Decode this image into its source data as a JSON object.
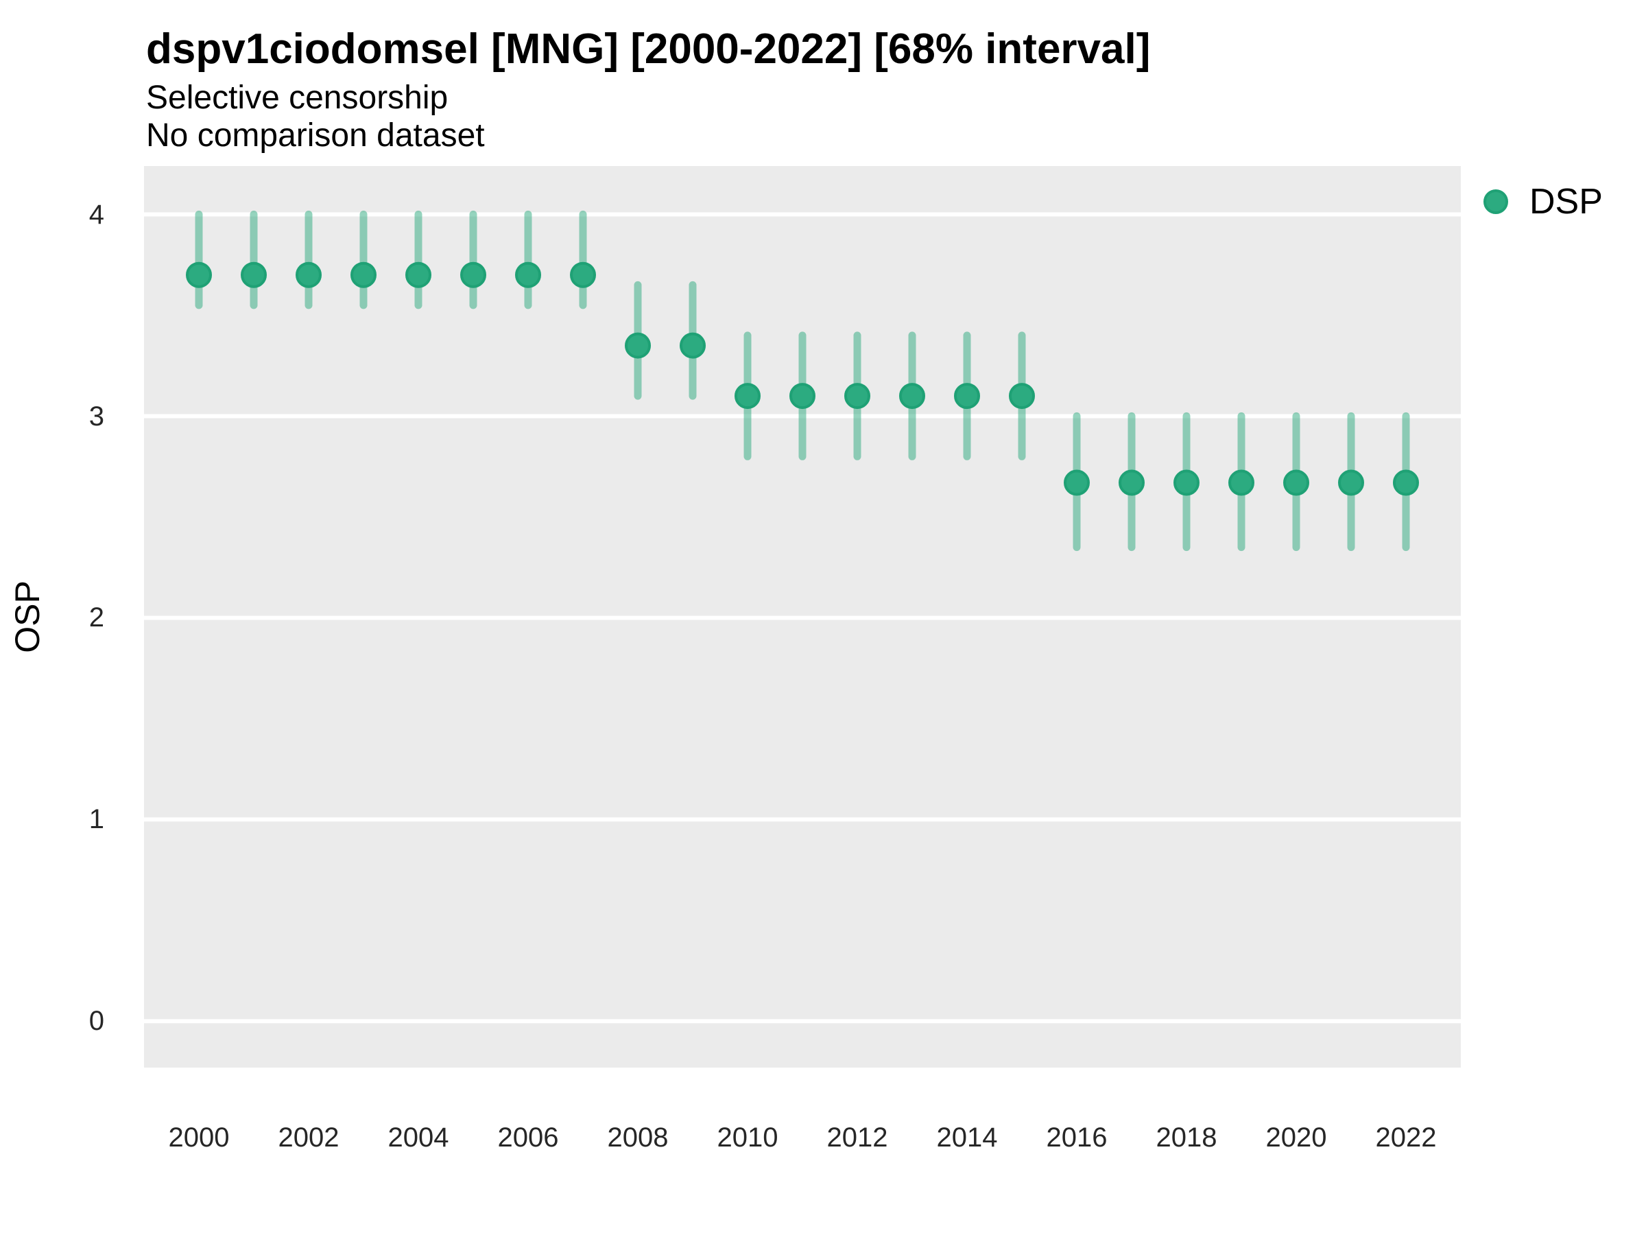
{
  "chart_data": {
    "type": "scatter",
    "subtype": "pointrange",
    "title": "dspv1ciodomsel [MNG] [2000-2022] [68% interval]",
    "subtitle_lines": [
      "Selective censorship",
      "No comparison dataset"
    ],
    "xlabel": "",
    "ylabel": "OSP",
    "legend": {
      "position": "right",
      "entries": [
        {
          "label": "DSP",
          "marker": "circle"
        }
      ]
    },
    "grid": "horizontal major gridlines only, white on gray panel",
    "xlim": [
      1999,
      2023
    ],
    "ylim": [
      -0.23,
      4.24
    ],
    "y_breaks": [
      0,
      1,
      2,
      3,
      4
    ],
    "x_tick_years": [
      2000,
      2002,
      2004,
      2006,
      2008,
      2010,
      2012,
      2014,
      2016,
      2018,
      2020,
      2022
    ],
    "series": [
      {
        "name": "DSP",
        "points": [
          {
            "year": 2000,
            "est": 3.7,
            "lo": 3.55,
            "hi": 4.0
          },
          {
            "year": 2001,
            "est": 3.7,
            "lo": 3.55,
            "hi": 4.0
          },
          {
            "year": 2002,
            "est": 3.7,
            "lo": 3.55,
            "hi": 4.0
          },
          {
            "year": 2003,
            "est": 3.7,
            "lo": 3.55,
            "hi": 4.0
          },
          {
            "year": 2004,
            "est": 3.7,
            "lo": 3.55,
            "hi": 4.0
          },
          {
            "year": 2005,
            "est": 3.7,
            "lo": 3.55,
            "hi": 4.0
          },
          {
            "year": 2006,
            "est": 3.7,
            "lo": 3.55,
            "hi": 4.0
          },
          {
            "year": 2007,
            "est": 3.7,
            "lo": 3.55,
            "hi": 4.0
          },
          {
            "year": 2008,
            "est": 3.35,
            "lo": 3.1,
            "hi": 3.65
          },
          {
            "year": 2009,
            "est": 3.35,
            "lo": 3.1,
            "hi": 3.65
          },
          {
            "year": 2010,
            "est": 3.1,
            "lo": 2.8,
            "hi": 3.4
          },
          {
            "year": 2011,
            "est": 3.1,
            "lo": 2.8,
            "hi": 3.4
          },
          {
            "year": 2012,
            "est": 3.1,
            "lo": 2.8,
            "hi": 3.4
          },
          {
            "year": 2013,
            "est": 3.1,
            "lo": 2.8,
            "hi": 3.4
          },
          {
            "year": 2014,
            "est": 3.1,
            "lo": 2.8,
            "hi": 3.4
          },
          {
            "year": 2015,
            "est": 3.1,
            "lo": 2.8,
            "hi": 3.4
          },
          {
            "year": 2016,
            "est": 2.67,
            "lo": 2.35,
            "hi": 3.0
          },
          {
            "year": 2017,
            "est": 2.67,
            "lo": 2.35,
            "hi": 3.0
          },
          {
            "year": 2018,
            "est": 2.67,
            "lo": 2.35,
            "hi": 3.0
          },
          {
            "year": 2019,
            "est": 2.67,
            "lo": 2.35,
            "hi": 3.0
          },
          {
            "year": 2020,
            "est": 2.67,
            "lo": 2.35,
            "hi": 3.0
          },
          {
            "year": 2021,
            "est": 2.67,
            "lo": 2.35,
            "hi": 3.0
          },
          {
            "year": 2022,
            "est": 2.67,
            "lo": 2.35,
            "hi": 3.0
          }
        ]
      }
    ]
  },
  "colors": {
    "point_fill": "#2CAB80",
    "point_stroke": "#1FA175",
    "interval": "#2CAA7E",
    "interval_opacity": 0.5,
    "panel_bg": "#EBEBEB",
    "gridline": "#FFFFFF",
    "title_text": "#000000",
    "axis_text": "#262626"
  }
}
